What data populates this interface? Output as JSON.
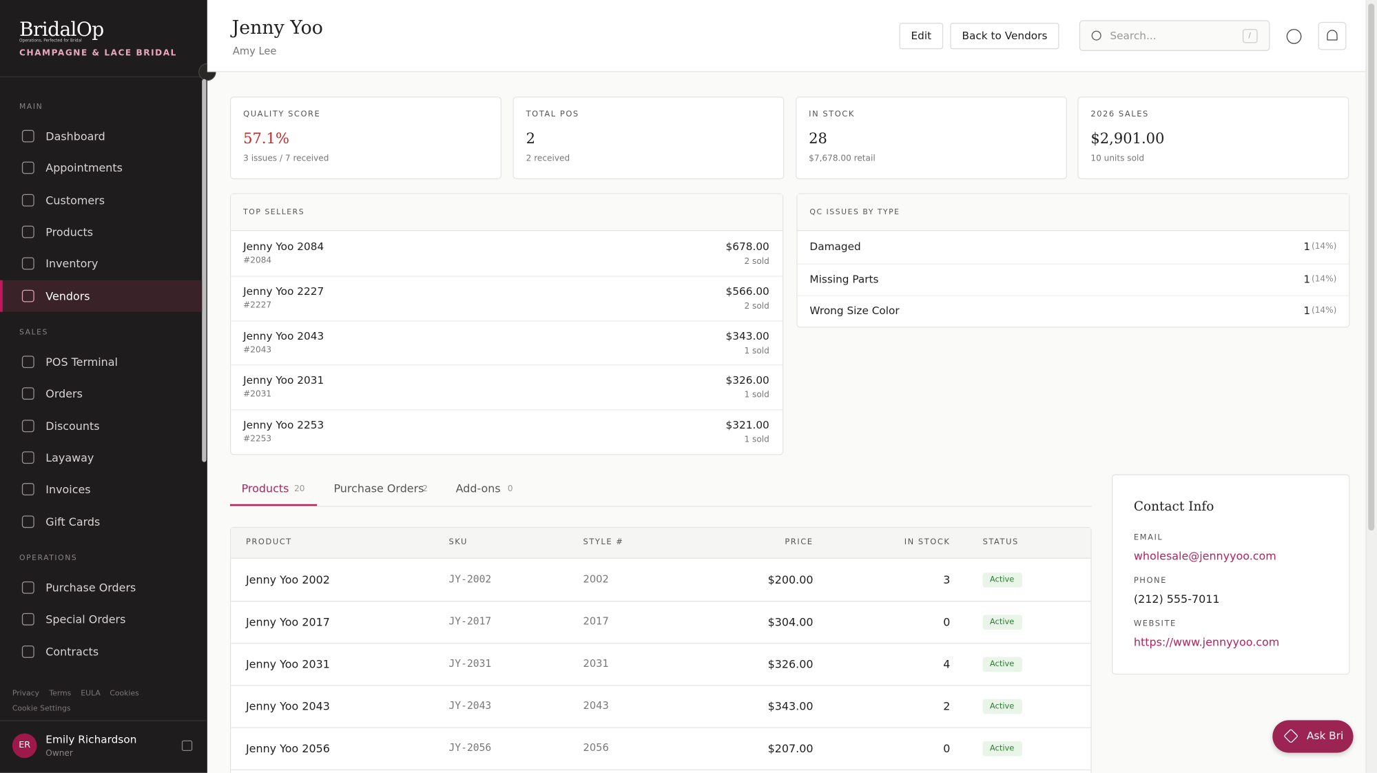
{
  "sidebar": {
    "brand": "BridalOp",
    "tagline": "Operations, Perfected for Bridal",
    "store": "CHAMPAGNE & LACE BRIDAL",
    "active": "Vendors",
    "sections": [
      {
        "title": "MAIN",
        "items": [
          "Dashboard",
          "Appointments",
          "Customers",
          "Products",
          "Inventory",
          "Vendors"
        ]
      },
      {
        "title": "SALES",
        "items": [
          "POS Terminal",
          "Orders",
          "Discounts",
          "Layaway",
          "Invoices",
          "Gift Cards"
        ]
      },
      {
        "title": "OPERATIONS",
        "items": [
          "Purchase Orders",
          "Special Orders",
          "Contracts"
        ]
      }
    ],
    "footer_links": [
      "Privacy",
      "Terms",
      "EULA",
      "Cookies",
      "Cookie Settings"
    ],
    "user": {
      "initials": "ER",
      "name": "Emily Richardson",
      "role": "Owner"
    }
  },
  "header": {
    "title": "Jenny Yoo",
    "subtitle": "Amy Lee",
    "buttons": [
      "Edit",
      "Back to Vendors"
    ],
    "search_placeholder": "Search...",
    "search_shortcut": "/"
  },
  "stats": [
    {
      "label": "QUALITY SCORE",
      "value": "57.1%",
      "note": "3 issues / 7 received"
    },
    {
      "label": "TOTAL POS",
      "value": "2",
      "note": "2 received"
    },
    {
      "label": "IN STOCK",
      "value": "28",
      "note": "$7,678.00 retail"
    },
    {
      "label": "2026 SALES",
      "value": "$2,901.00",
      "note": "10 units sold"
    }
  ],
  "top_sellers": {
    "title": "TOP SELLERS",
    "rows": [
      {
        "name": "Jenny Yoo 2084",
        "code": "#2084",
        "amount": "$678.00",
        "sold": "2 sold"
      },
      {
        "name": "Jenny Yoo 2227",
        "code": "#2227",
        "amount": "$566.00",
        "sold": "2 sold"
      },
      {
        "name": "Jenny Yoo 2043",
        "code": "#2043",
        "amount": "$343.00",
        "sold": "1 sold"
      },
      {
        "name": "Jenny Yoo 2031",
        "code": "#2031",
        "amount": "$326.00",
        "sold": "1 sold"
      },
      {
        "name": "Jenny Yoo 2253",
        "code": "#2253",
        "amount": "$321.00",
        "sold": "1 sold"
      }
    ]
  },
  "qc_issues": {
    "title": "QC ISSUES BY TYPE",
    "rows": [
      {
        "type": "Damaged",
        "count": "1",
        "share": "(14%)"
      },
      {
        "type": "Missing Parts",
        "count": "1",
        "share": "(14%)"
      },
      {
        "type": "Wrong Size Color",
        "count": "1",
        "share": "(14%)"
      }
    ]
  },
  "tabs": [
    {
      "label": "Products",
      "count": "20"
    },
    {
      "label": "Purchase Orders",
      "count": "2"
    },
    {
      "label": "Add-ons",
      "count": "0"
    }
  ],
  "table": {
    "columns": [
      "PRODUCT",
      "SKU",
      "STYLE #",
      "PRICE",
      "IN STOCK",
      "STATUS"
    ],
    "rows": [
      [
        "Jenny Yoo 2002",
        "JY-2002",
        "2002",
        "$200.00",
        "3",
        "Active"
      ],
      [
        "Jenny Yoo 2017",
        "JY-2017",
        "2017",
        "$304.00",
        "0",
        "Active"
      ],
      [
        "Jenny Yoo 2031",
        "JY-2031",
        "2031",
        "$326.00",
        "4",
        "Active"
      ],
      [
        "Jenny Yoo 2043",
        "JY-2043",
        "2043",
        "$343.00",
        "2",
        "Active"
      ],
      [
        "Jenny Yoo 2056",
        "JY-2056",
        "2056",
        "$207.00",
        "0",
        "Active"
      ]
    ]
  },
  "contact": {
    "title": "Contact Info",
    "fields": [
      {
        "label": "EMAIL",
        "value": "wholesale@jennyyoo.com"
      },
      {
        "label": "PHONE",
        "value": "(212) 555-7011"
      },
      {
        "label": "WEBSITE",
        "value": "https://www.jennyyoo.com"
      }
    ]
  },
  "assistant_button": "Ask Bri"
}
